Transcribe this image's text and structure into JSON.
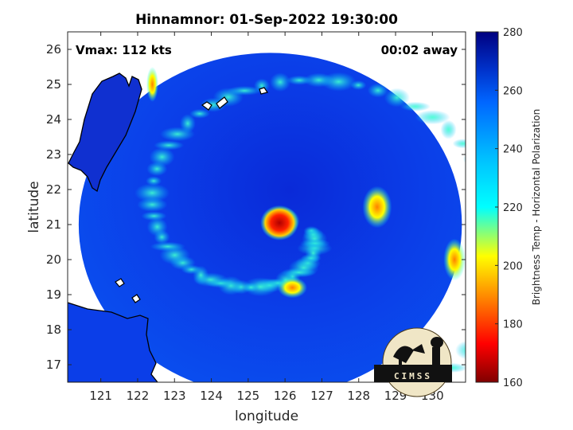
{
  "title": "Hinnamnor: 01-Sep-2022 19:30:00",
  "annotations": {
    "vmax": "Vmax: 112 kts",
    "time_away": "00:02 away"
  },
  "logo_text": "CIMSS",
  "chart_data": {
    "type": "heatmap",
    "title": "Hinnamnor: 01-Sep-2022 19:30:00",
    "xlabel": "longitude",
    "ylabel": "latitude",
    "xlim": [
      120.1,
      130.9
    ],
    "ylim": [
      16.5,
      26.5
    ],
    "xticks": [
      121,
      122,
      123,
      124,
      125,
      126,
      127,
      128,
      129,
      130
    ],
    "yticks": [
      17,
      18,
      19,
      20,
      21,
      22,
      23,
      24,
      25,
      26
    ],
    "colorbar": {
      "label": "Brightness Temp - Horizontal Polarization",
      "range": [
        160,
        280
      ],
      "ticks": [
        160,
        180,
        200,
        220,
        240,
        260,
        280
      ],
      "colormap": "jet"
    },
    "swath": {
      "center": [
        125.6,
        21.0
      ],
      "radius_lon": 5.2,
      "radius_lat": 4.9
    },
    "storm_eye": {
      "lon": 125.85,
      "lat": 21.05,
      "min_tb": 165
    },
    "features": [
      {
        "name": "eyewall",
        "lon": 125.9,
        "lat": 21.1,
        "tb": 172,
        "rx": 0.25,
        "ry": 0.2
      },
      {
        "name": "rainband-south",
        "lon": 126.2,
        "lat": 19.2,
        "tb": 190,
        "rx": 0.2,
        "ry": 0.15
      },
      {
        "name": "rainband-east",
        "lon": 128.5,
        "lat": 21.5,
        "tb": 210,
        "rx": 0.2,
        "ry": 0.3
      },
      {
        "name": "taiwan-coast",
        "lon": 122.4,
        "lat": 25.0,
        "tb": 180,
        "rx": 0.08,
        "ry": 0.25
      },
      {
        "name": "east-edge",
        "lon": 130.6,
        "lat": 20.0,
        "tb": 195,
        "rx": 0.15,
        "ry": 0.3
      }
    ]
  }
}
